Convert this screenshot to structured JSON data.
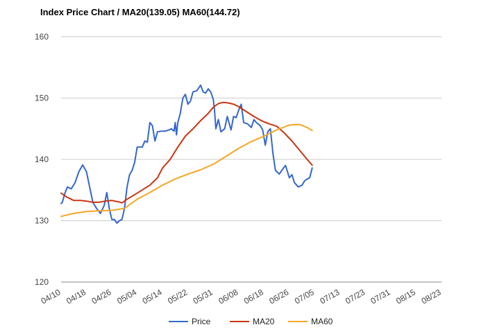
{
  "chart_data": {
    "type": "line",
    "title": "Index Price Chart / MA20(139.05) MA60(144.72)",
    "xlabel": "",
    "ylabel": "",
    "ylim": [
      120,
      160
    ],
    "yticks": [
      120,
      130,
      140,
      150,
      160
    ],
    "grid": true,
    "legend_position": "bottom",
    "xtick_labels": [
      "04/10",
      "04/18",
      "04/26",
      "05/04",
      "05/14",
      "05/22",
      "05/31",
      "06/08",
      "06/18",
      "06/26",
      "07/05",
      "07/13",
      "07/23",
      "07/31",
      "08/15",
      "08/23"
    ],
    "x": [
      "04/10",
      "04/18",
      "04/26",
      "05/04",
      "05/14",
      "05/22",
      "05/31",
      "06/08",
      "06/18",
      "06/26",
      "07/05",
      "07/13",
      "07/23",
      "07/31",
      "08/15",
      "08/23"
    ],
    "series": [
      {
        "name": "Price",
        "color": "#3366cc",
        "values": [
          [
            0,
            132.8
          ],
          [
            0.05,
            133.0
          ],
          [
            0.15,
            134.5
          ],
          [
            0.25,
            135.5
          ],
          [
            0.4,
            135.2
          ],
          [
            0.55,
            136.2
          ],
          [
            0.7,
            138.0
          ],
          [
            0.85,
            139.1
          ],
          [
            1.0,
            138.0
          ],
          [
            1.1,
            136.0
          ],
          [
            1.25,
            133.0
          ],
          [
            1.4,
            132.0
          ],
          [
            1.55,
            131.2
          ],
          [
            1.7,
            132.5
          ],
          [
            1.8,
            134.6
          ],
          [
            1.9,
            132.0
          ],
          [
            2.0,
            130.2
          ],
          [
            2.1,
            130.2
          ],
          [
            2.2,
            129.6
          ],
          [
            2.3,
            130.0
          ],
          [
            2.4,
            130.2
          ],
          [
            2.5,
            132.0
          ],
          [
            2.6,
            135.5
          ],
          [
            2.7,
            137.5
          ],
          [
            2.8,
            138.2
          ],
          [
            2.9,
            139.5
          ],
          [
            3.0,
            142.0
          ],
          [
            3.1,
            142.0
          ],
          [
            3.2,
            142.0
          ],
          [
            3.3,
            143.0
          ],
          [
            3.4,
            142.8
          ],
          [
            3.5,
            146.0
          ],
          [
            3.6,
            145.5
          ],
          [
            3.7,
            143.0
          ],
          [
            3.8,
            144.5
          ],
          [
            3.95,
            144.6
          ],
          [
            4.1,
            144.6
          ],
          [
            4.25,
            144.8
          ],
          [
            4.35,
            145.0
          ],
          [
            4.45,
            144.6
          ],
          [
            4.5,
            146.0
          ],
          [
            4.55,
            144.0
          ],
          [
            4.6,
            146.0
          ],
          [
            4.7,
            147.5
          ],
          [
            4.8,
            150.0
          ],
          [
            4.9,
            150.6
          ],
          [
            5.0,
            149.0
          ],
          [
            5.1,
            149.5
          ],
          [
            5.2,
            151.0
          ],
          [
            5.35,
            151.2
          ],
          [
            5.5,
            152.1
          ],
          [
            5.6,
            151.0
          ],
          [
            5.7,
            150.8
          ],
          [
            5.8,
            151.5
          ],
          [
            5.9,
            151.0
          ],
          [
            6.0,
            149.8
          ],
          [
            6.05,
            148.0
          ],
          [
            6.1,
            145.0
          ],
          [
            6.2,
            146.5
          ],
          [
            6.3,
            144.5
          ],
          [
            6.45,
            145.0
          ],
          [
            6.55,
            147.0
          ],
          [
            6.7,
            144.8
          ],
          [
            6.8,
            147.0
          ],
          [
            6.9,
            146.8
          ],
          [
            7.0,
            148.0
          ],
          [
            7.1,
            149.0
          ],
          [
            7.2,
            146.0
          ],
          [
            7.35,
            145.8
          ],
          [
            7.5,
            145.2
          ],
          [
            7.6,
            146.5
          ],
          [
            7.7,
            146.0
          ],
          [
            7.85,
            145.5
          ],
          [
            7.95,
            144.8
          ],
          [
            8.05,
            142.3
          ],
          [
            8.15,
            144.5
          ],
          [
            8.25,
            145.0
          ],
          [
            8.35,
            141.0
          ],
          [
            8.45,
            138.2
          ],
          [
            8.6,
            137.6
          ],
          [
            8.75,
            138.5
          ],
          [
            8.85,
            139.0
          ],
          [
            9.0,
            137.0
          ],
          [
            9.1,
            137.5
          ],
          [
            9.2,
            136.2
          ],
          [
            9.35,
            135.5
          ],
          [
            9.5,
            135.8
          ],
          [
            9.6,
            136.5
          ],
          [
            9.7,
            136.8
          ],
          [
            9.8,
            137.0
          ],
          [
            9.9,
            138.6
          ]
        ]
      },
      {
        "name": "MA20",
        "color": "#cc3311",
        "values": [
          [
            0,
            134.5
          ],
          [
            0.25,
            133.8
          ],
          [
            0.5,
            133.3
          ],
          [
            0.75,
            133.3
          ],
          [
            1.0,
            133.2
          ],
          [
            1.25,
            133.0
          ],
          [
            1.5,
            133.0
          ],
          [
            1.75,
            133.2
          ],
          [
            2.0,
            133.3
          ],
          [
            2.25,
            133.1
          ],
          [
            2.4,
            132.9
          ],
          [
            2.6,
            133.5
          ],
          [
            3.0,
            134.5
          ],
          [
            3.5,
            135.8
          ],
          [
            3.8,
            137.0
          ],
          [
            4.0,
            138.6
          ],
          [
            4.3,
            140.0
          ],
          [
            4.6,
            142.0
          ],
          [
            4.9,
            143.8
          ],
          [
            5.2,
            145.0
          ],
          [
            5.5,
            146.3
          ],
          [
            5.8,
            147.5
          ],
          [
            6.0,
            148.5
          ],
          [
            6.2,
            149.1
          ],
          [
            6.4,
            149.3
          ],
          [
            6.6,
            149.2
          ],
          [
            6.8,
            149.0
          ],
          [
            7.0,
            148.6
          ],
          [
            7.3,
            147.8
          ],
          [
            7.6,
            147.0
          ],
          [
            7.9,
            146.3
          ],
          [
            8.2,
            145.8
          ],
          [
            8.5,
            145.4
          ],
          [
            8.8,
            144.3
          ],
          [
            9.1,
            143.0
          ],
          [
            9.4,
            141.5
          ],
          [
            9.7,
            140.0
          ],
          [
            9.9,
            139.05
          ]
        ]
      },
      {
        "name": "MA60",
        "color": "#f5a623",
        "values": [
          [
            0,
            130.7
          ],
          [
            0.5,
            131.2
          ],
          [
            1.0,
            131.5
          ],
          [
            1.5,
            131.6
          ],
          [
            2.0,
            131.7
          ],
          [
            2.5,
            132.0
          ],
          [
            3.0,
            133.5
          ],
          [
            3.5,
            134.6
          ],
          [
            4.0,
            135.8
          ],
          [
            4.5,
            136.8
          ],
          [
            5.0,
            137.6
          ],
          [
            5.5,
            138.3
          ],
          [
            6.0,
            139.2
          ],
          [
            6.5,
            140.5
          ],
          [
            7.0,
            141.8
          ],
          [
            7.5,
            142.9
          ],
          [
            8.0,
            143.8
          ],
          [
            8.5,
            144.8
          ],
          [
            9.0,
            145.6
          ],
          [
            9.4,
            145.7
          ],
          [
            9.7,
            145.2
          ],
          [
            9.9,
            144.72
          ]
        ]
      }
    ]
  }
}
